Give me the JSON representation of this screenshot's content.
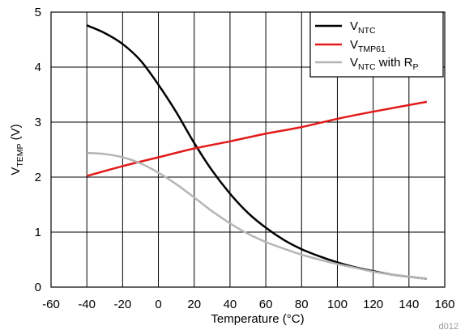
{
  "figure_id": "d012",
  "colors": {
    "ntc": "#000000",
    "tmp61": "#e31a1a",
    "ntc_rp": "#b5b5b5",
    "grid": "#000000",
    "background": "#ffffff"
  },
  "chart_data": {
    "type": "line",
    "xlabel": {
      "main": "Temperature (",
      "unit_symbol": "°C",
      "close": ")"
    },
    "ylabel": {
      "main": "V",
      "sub": "TEMP",
      "rest": " (V)"
    },
    "xlim": [
      -60,
      160
    ],
    "ylim": [
      0,
      5
    ],
    "xticks": [
      -60,
      -40,
      -20,
      0,
      20,
      40,
      60,
      80,
      100,
      120,
      140,
      160
    ],
    "yticks": [
      0,
      1,
      2,
      3,
      4,
      5
    ],
    "grid": true,
    "legend_position": "top-right",
    "series": [
      {
        "key": "ntc",
        "name": {
          "main": "V",
          "sub": "NTC",
          "rest": ""
        },
        "color": "#000000",
        "x": [
          -40,
          -30,
          -20,
          -10,
          0,
          10,
          20,
          30,
          40,
          50,
          60,
          70,
          80,
          90,
          100,
          110,
          120,
          130,
          140,
          150
        ],
        "y": [
          4.76,
          4.62,
          4.42,
          4.12,
          3.68,
          3.18,
          2.62,
          2.12,
          1.7,
          1.35,
          1.08,
          0.86,
          0.69,
          0.56,
          0.45,
          0.36,
          0.29,
          0.23,
          0.19,
          0.15
        ]
      },
      {
        "key": "tmp61",
        "name": {
          "main": "V",
          "sub": "TMP61",
          "rest": ""
        },
        "color": "#e31a1a",
        "x": [
          -40,
          -20,
          0,
          20,
          40,
          60,
          80,
          100,
          120,
          150
        ],
        "y": [
          2.02,
          2.2,
          2.36,
          2.52,
          2.65,
          2.79,
          2.91,
          3.06,
          3.19,
          3.37
        ]
      },
      {
        "key": "ntc_rp",
        "name": {
          "main": "V",
          "sub": "NTC",
          "rest": " with R",
          "sub2": "P"
        },
        "color": "#b5b5b5",
        "x": [
          -40,
          -30,
          -20,
          -10,
          0,
          10,
          20,
          30,
          40,
          50,
          60,
          70,
          80,
          90,
          100,
          110,
          120,
          130,
          140,
          150
        ],
        "y": [
          2.44,
          2.42,
          2.36,
          2.25,
          2.08,
          1.87,
          1.63,
          1.38,
          1.16,
          0.97,
          0.82,
          0.7,
          0.59,
          0.5,
          0.42,
          0.35,
          0.28,
          0.23,
          0.19,
          0.15
        ]
      }
    ]
  }
}
